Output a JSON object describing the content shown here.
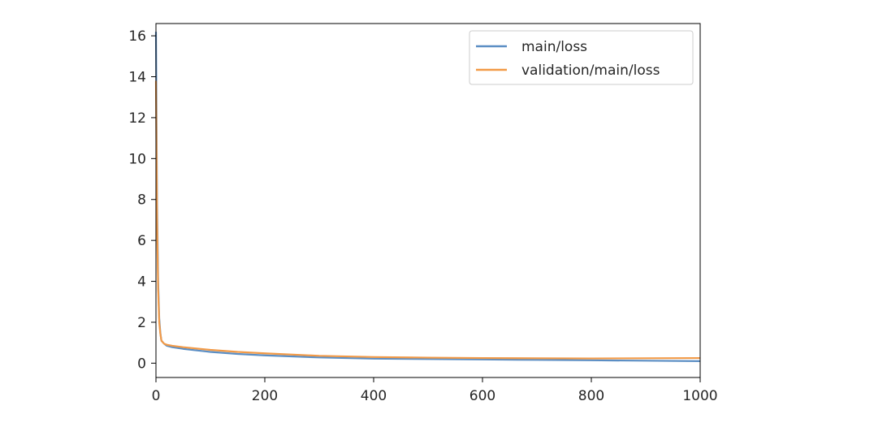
{
  "chart_data": {
    "type": "line",
    "title": "",
    "xlabel": "",
    "ylabel": "",
    "xlim": [
      0,
      1000
    ],
    "ylim": [
      -0.7,
      16.6
    ],
    "xticks": [
      0,
      200,
      400,
      600,
      800,
      1000
    ],
    "yticks": [
      0,
      2,
      4,
      6,
      8,
      10,
      12,
      14,
      16
    ],
    "grid": false,
    "legend_position": "top-right",
    "series": [
      {
        "name": "main/loss",
        "color": "#5b8ec4",
        "x": [
          0,
          2,
          4,
          6,
          8,
          10,
          15,
          20,
          30,
          50,
          100,
          150,
          200,
          300,
          400,
          500,
          600,
          700,
          800,
          900,
          1000
        ],
        "y": [
          16.2,
          8.0,
          4.0,
          2.2,
          1.5,
          1.1,
          0.95,
          0.85,
          0.78,
          0.7,
          0.55,
          0.45,
          0.38,
          0.28,
          0.22,
          0.2,
          0.18,
          0.16,
          0.14,
          0.12,
          0.1
        ]
      },
      {
        "name": "validation/main/loss",
        "color": "#f29a47",
        "x": [
          0,
          2,
          4,
          6,
          8,
          10,
          15,
          20,
          30,
          50,
          100,
          150,
          200,
          300,
          400,
          500,
          600,
          700,
          800,
          900,
          1000
        ],
        "y": [
          13.8,
          7.0,
          3.6,
          2.0,
          1.45,
          1.1,
          0.95,
          0.9,
          0.85,
          0.78,
          0.65,
          0.55,
          0.48,
          0.36,
          0.3,
          0.27,
          0.25,
          0.24,
          0.23,
          0.24,
          0.25
        ]
      }
    ]
  }
}
